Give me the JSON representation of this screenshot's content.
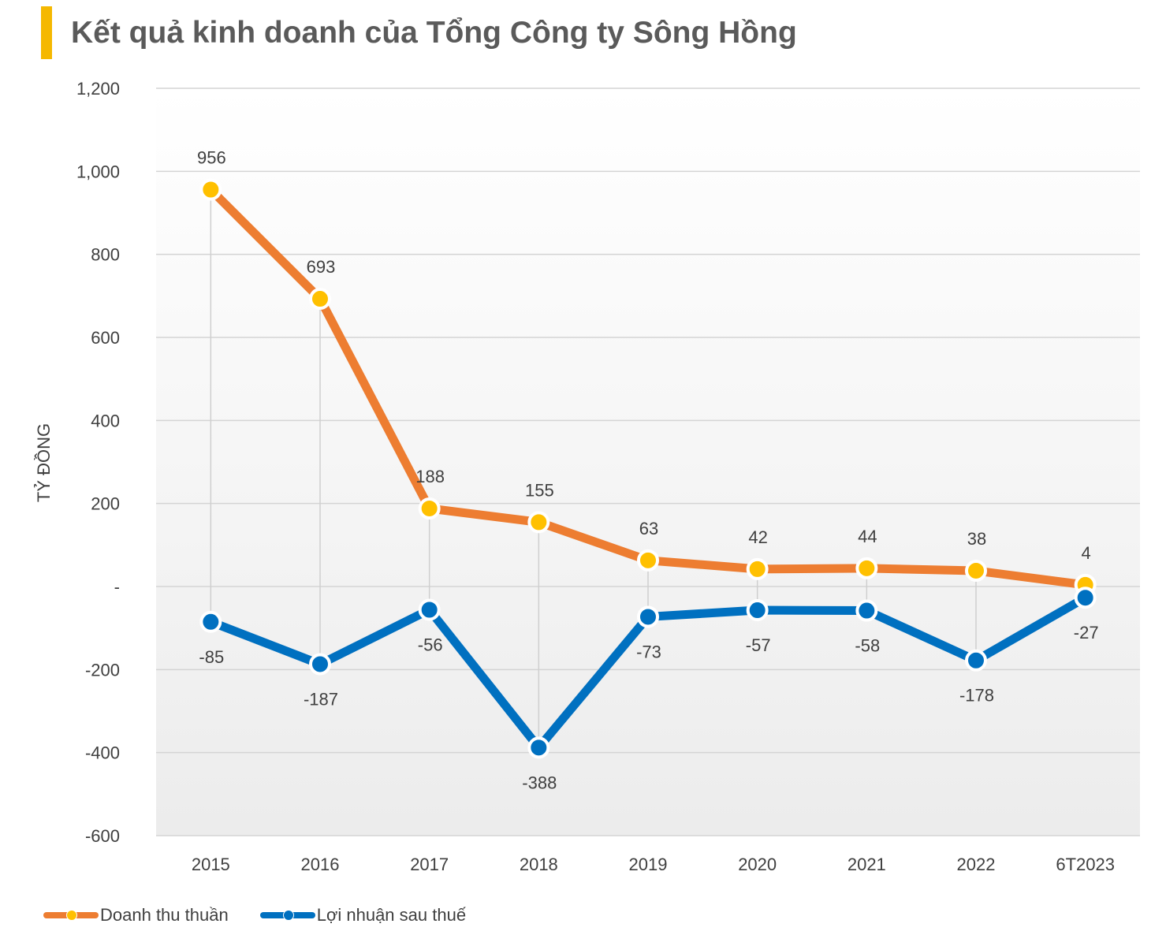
{
  "title": "Kết quả kinh doanh của Tổng Công ty Sông Hồng",
  "colors": {
    "title_accent": "#f5b800",
    "revenue_line": "#ed7d31",
    "revenue_marker": "#ffc000",
    "profit_line": "#0070c0",
    "profit_marker": "#0070c0"
  },
  "chart_data": {
    "type": "line",
    "categories": [
      "2015",
      "2016",
      "2017",
      "2018",
      "2019",
      "2020",
      "2021",
      "2022",
      "6T2023"
    ],
    "series": [
      {
        "name": "Doanh thu thuần",
        "values": [
          956,
          693,
          188,
          155,
          63,
          42,
          44,
          38,
          4
        ]
      },
      {
        "name": "Lợi nhuận sau thuế",
        "values": [
          -85,
          -187,
          -56,
          -388,
          -73,
          -57,
          -58,
          -178,
          -27
        ]
      }
    ],
    "ylabel": "TỶ ĐỒNG",
    "ylim": [
      -600,
      1200
    ],
    "yticks": [
      1200,
      1000,
      800,
      600,
      400,
      200,
      0,
      -200,
      -400,
      -600
    ],
    "ytick_labels": [
      "1,200",
      "1,000",
      "800",
      "600",
      "400",
      "200",
      "-",
      "-200",
      "-400",
      "-600"
    ],
    "grid": true,
    "drop_lines": true,
    "legend_position": "bottom-left"
  }
}
